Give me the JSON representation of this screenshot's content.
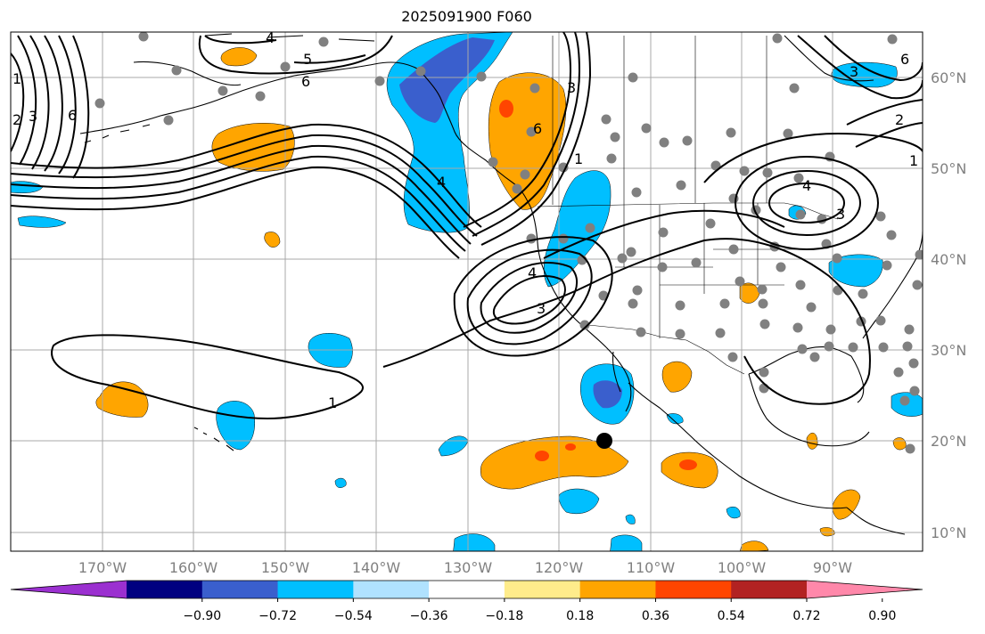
{
  "title": "2025091900 F060",
  "lat_ticks": [
    "60°N",
    "50°N",
    "40°N",
    "30°N",
    "20°N",
    "10°N"
  ],
  "lon_ticks": [
    "170°W",
    "160°W",
    "150°W",
    "140°W",
    "130°W",
    "120°W",
    "110°W",
    "100°W",
    "90°W"
  ],
  "colorbar": {
    "levels": [
      "−0.90",
      "−0.72",
      "−0.54",
      "−0.36",
      "−0.18",
      "0.18",
      "0.36",
      "0.54",
      "0.72",
      "0.90"
    ],
    "colors": [
      "#9b30d0",
      "#000080",
      "#3a5fcd",
      "#00bfff",
      "#b0e2ff",
      "#ffffff",
      "#ffec8b",
      "#ffa500",
      "#ff4500",
      "#b22222",
      "#ff88aa"
    ]
  },
  "contour_labels": [
    "1",
    "2",
    "3",
    "4",
    "5",
    "6"
  ],
  "colors": {
    "grid": "#a8a8a8",
    "coast": "#000000",
    "station": "#808080",
    "marker": "#000000"
  }
}
